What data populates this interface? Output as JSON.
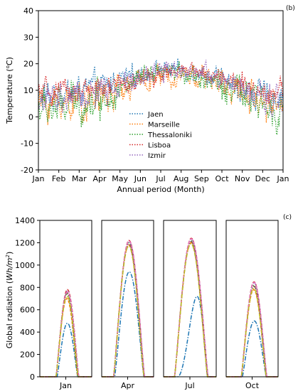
{
  "chart_data": [
    {
      "type": "line",
      "panel_label": "(b)",
      "xlabel": "Annual period (Month)",
      "ylabel": "Temperature (°C)",
      "ylabel_main": "Temperature (",
      "ylabel_unit_sup": "o",
      "ylabel_unit": "C)",
      "ylim": [
        -20,
        40
      ],
      "yticks": [
        -20,
        -10,
        0,
        10,
        20,
        30,
        40
      ],
      "xticks": [
        "Jan",
        "Feb",
        "Mar",
        "Apr",
        "May",
        "Jun",
        "Jul",
        "Aug",
        "Sep",
        "Oct",
        "Nov",
        "Dec",
        "Jan"
      ],
      "legend_position": "lower-left",
      "series": [
        {
          "name": "Jaen",
          "color": "#1f77b4",
          "style": "dotted",
          "monthly_mean": [
            7,
            8,
            10,
            11,
            14,
            16,
            18,
            18,
            16,
            13,
            10,
            8,
            7
          ],
          "amplitude": [
            5,
            5,
            5,
            5,
            4,
            3,
            3,
            3,
            3,
            4,
            4,
            5,
            5
          ]
        },
        {
          "name": "Marseille",
          "color": "#ff7f0e",
          "style": "dotted",
          "monthly_mean": [
            5,
            5,
            6,
            7,
            10,
            13,
            15,
            16,
            15,
            12,
            9,
            6,
            5
          ],
          "amplitude": [
            5,
            6,
            6,
            7,
            5,
            4,
            4,
            4,
            4,
            5,
            5,
            5,
            5
          ]
        },
        {
          "name": "Thessaloniki",
          "color": "#2ca02c",
          "style": "dotted",
          "monthly_mean": [
            3,
            3,
            5,
            7,
            10,
            14,
            16,
            17,
            15,
            12,
            8,
            4,
            3
          ],
          "amplitude": [
            6,
            7,
            7,
            6,
            5,
            4,
            3,
            3,
            4,
            5,
            6,
            6,
            6
          ]
        },
        {
          "name": "Lisboa",
          "color": "#d62728",
          "style": "dotted",
          "monthly_mean": [
            9,
            9,
            10,
            10,
            12,
            14,
            16,
            17,
            17,
            15,
            12,
            10,
            9
          ],
          "amplitude": [
            4,
            4,
            4,
            4,
            4,
            3,
            3,
            3,
            3,
            4,
            4,
            4,
            4
          ]
        },
        {
          "name": "Izmir",
          "color": "#9467bd",
          "style": "dotted",
          "monthly_mean": [
            6,
            6,
            7,
            9,
            12,
            15,
            18,
            18,
            16,
            13,
            10,
            7,
            6
          ],
          "amplitude": [
            5,
            5,
            5,
            5,
            4,
            4,
            4,
            3,
            4,
            4,
            5,
            5,
            5
          ]
        }
      ]
    },
    {
      "type": "line",
      "panel_label": "(c)",
      "ylabel": "Global radiation (Wh/m²)",
      "ylabel_main": "Global radiation (",
      "ylabel_unit": "Wh/m",
      "ylabel_unit_sup": "2",
      "ylabel_close": ")",
      "ylim": [
        0,
        1400
      ],
      "yticks": [
        0,
        200,
        400,
        600,
        800,
        1000,
        1200,
        1400
      ],
      "hours": [
        0,
        2,
        4,
        6,
        8,
        10,
        12,
        14,
        16,
        18,
        20,
        22,
        24
      ],
      "panels": [
        {
          "label": "Jan",
          "series": [
            {
              "name": "Jaen",
              "color": "#1f77b4",
              "peak": 480,
              "sunrise": 8,
              "sunset": 17.5,
              "skew": 0
            },
            {
              "name": "Marseille",
              "color": "#ff7f0e",
              "peak": 700,
              "sunrise": 7.5,
              "sunset": 17.5,
              "skew": 0
            },
            {
              "name": "Thessaloniki",
              "color": "#2ca02c",
              "peak": 740,
              "sunrise": 7.5,
              "sunset": 17.5,
              "skew": 0
            },
            {
              "name": "Lisboa",
              "color": "#d62728",
              "peak": 780,
              "sunrise": 7.5,
              "sunset": 18,
              "skew": 0
            },
            {
              "name": "Izmir",
              "color": "#9467bd",
              "peak": 770,
              "sunrise": 7.5,
              "sunset": 18,
              "skew": 0
            },
            {
              "name": "",
              "color": "#8c564b",
              "peak": 750,
              "sunrise": 7.5,
              "sunset": 17.8,
              "skew": 0
            },
            {
              "name": "",
              "color": "#e377c2",
              "peak": 760,
              "sunrise": 7.5,
              "sunset": 18,
              "skew": 0
            },
            {
              "name": "",
              "color": "#bcbd22",
              "peak": 720,
              "sunrise": 7.5,
              "sunset": 17.7,
              "skew": 0
            }
          ]
        },
        {
          "label": "Apr",
          "series": [
            {
              "name": "Jaen",
              "color": "#1f77b4",
              "peak": 940,
              "sunrise": 6,
              "sunset": 19.5,
              "skew": 0
            },
            {
              "name": "Marseille",
              "color": "#ff7f0e",
              "peak": 1180,
              "sunrise": 5.5,
              "sunset": 19.5,
              "skew": 0
            },
            {
              "name": "Thessaloniki",
              "color": "#2ca02c",
              "peak": 1200,
              "sunrise": 5.5,
              "sunset": 19.5,
              "skew": 0
            },
            {
              "name": "Lisboa",
              "color": "#d62728",
              "peak": 1220,
              "sunrise": 5.5,
              "sunset": 19.8,
              "skew": 0
            },
            {
              "name": "Izmir",
              "color": "#9467bd",
              "peak": 1210,
              "sunrise": 5.5,
              "sunset": 19.8,
              "skew": 0
            },
            {
              "name": "",
              "color": "#8c564b",
              "peak": 1190,
              "sunrise": 5.5,
              "sunset": 19.6,
              "skew": 0
            },
            {
              "name": "",
              "color": "#e377c2",
              "peak": 1215,
              "sunrise": 5.5,
              "sunset": 19.8,
              "skew": 0
            },
            {
              "name": "",
              "color": "#bcbd22",
              "peak": 1170,
              "sunrise": 5.5,
              "sunset": 19.5,
              "skew": 0
            }
          ]
        },
        {
          "label": "Jul",
          "series": [
            {
              "name": "Jaen",
              "color": "#1f77b4",
              "peak": 720,
              "sunrise": 6.5,
              "sunset": 20,
              "skew": 1.5
            },
            {
              "name": "Marseille",
              "color": "#ff7f0e",
              "peak": 1200,
              "sunrise": 5,
              "sunset": 20,
              "skew": 0
            },
            {
              "name": "Thessaloniki",
              "color": "#2ca02c",
              "peak": 1220,
              "sunrise": 5,
              "sunset": 20,
              "skew": 0
            },
            {
              "name": "Lisboa",
              "color": "#d62728",
              "peak": 1240,
              "sunrise": 5,
              "sunset": 20.3,
              "skew": 0
            },
            {
              "name": "Izmir",
              "color": "#9467bd",
              "peak": 1230,
              "sunrise": 5,
              "sunset": 20.3,
              "skew": 0
            },
            {
              "name": "",
              "color": "#8c564b",
              "peak": 1210,
              "sunrise": 5,
              "sunset": 20.1,
              "skew": 0
            },
            {
              "name": "",
              "color": "#e377c2",
              "peak": 1235,
              "sunrise": 5,
              "sunset": 20.3,
              "skew": 0
            },
            {
              "name": "",
              "color": "#bcbd22",
              "peak": 1190,
              "sunrise": 5,
              "sunset": 20,
              "skew": 0
            }
          ]
        },
        {
          "label": "Oct",
          "series": [
            {
              "name": "Jaen",
              "color": "#1f77b4",
              "peak": 500,
              "sunrise": 7.5,
              "sunset": 18.5,
              "skew": 0
            },
            {
              "name": "Marseille",
              "color": "#ff7f0e",
              "peak": 780,
              "sunrise": 7,
              "sunset": 18.5,
              "skew": 0
            },
            {
              "name": "Thessaloniki",
              "color": "#2ca02c",
              "peak": 820,
              "sunrise": 7,
              "sunset": 18.5,
              "skew": 0
            },
            {
              "name": "Lisboa",
              "color": "#d62728",
              "peak": 850,
              "sunrise": 7,
              "sunset": 18.8,
              "skew": 0
            },
            {
              "name": "Izmir",
              "color": "#9467bd",
              "peak": 840,
              "sunrise": 7,
              "sunset": 18.8,
              "skew": 0
            },
            {
              "name": "",
              "color": "#8c564b",
              "peak": 810,
              "sunrise": 7,
              "sunset": 18.6,
              "skew": 0
            },
            {
              "name": "",
              "color": "#e377c2",
              "peak": 845,
              "sunrise": 7,
              "sunset": 18.8,
              "skew": 0
            },
            {
              "name": "",
              "color": "#bcbd22",
              "peak": 790,
              "sunrise": 7,
              "sunset": 18.5,
              "skew": 0
            }
          ]
        }
      ]
    }
  ]
}
